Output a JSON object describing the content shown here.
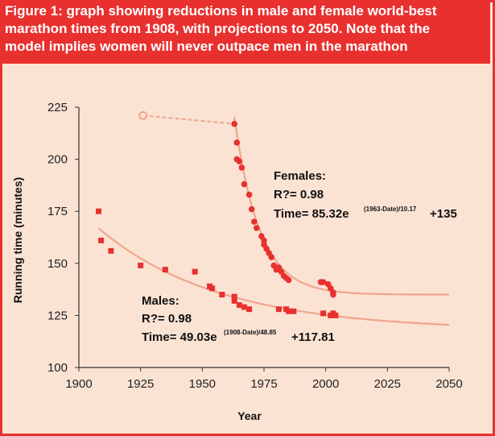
{
  "figure": {
    "title_lines": [
      "Figure 1: graph showing reductions in male and female world-best",
      "marathon times from 1908, with projections to 2050. Note that the",
      "model implies women will never outpace men in the marathon"
    ]
  },
  "colors": {
    "frame": "#e8312f",
    "panel": "#fbe3d4",
    "male_points": "#e8312f",
    "female_points": "#e8312f",
    "curve": "#f0a58c"
  },
  "annotations": {
    "females": {
      "heading": "Females:",
      "r2": "R?= 0.98",
      "time_prefix": "Time= 85.32e",
      "exponent": "(1963-Date)/10.17",
      "time_suffix": "+135"
    },
    "males": {
      "heading": "Males:",
      "r2": "R?= 0.98",
      "time_prefix": "Time= 49.03e",
      "exponent": "(1908-Date)/48.85",
      "time_suffix": "+117.81"
    }
  },
  "chart_data": {
    "type": "scatter",
    "title": "Figure 1: graph showing reductions in male and female world-best marathon times from 1908, with projections to 2050. Note that the model implies women will never outpace men in the marathon",
    "xlabel": "Year",
    "ylabel": "Running time (minutes)",
    "xlim": [
      1900,
      2050
    ],
    "ylim": [
      100,
      225
    ],
    "xticks": [
      1900,
      1925,
      1950,
      1975,
      2000,
      2025,
      2050
    ],
    "yticks": [
      100,
      125,
      150,
      175,
      200,
      225
    ],
    "series": [
      {
        "name": "Males",
        "marker": "square",
        "points": [
          [
            1908,
            175
          ],
          [
            1909,
            161
          ],
          [
            1913,
            156
          ],
          [
            1925,
            149
          ],
          [
            1935,
            147
          ],
          [
            1947,
            146
          ],
          [
            1953,
            139
          ],
          [
            1954,
            138
          ],
          [
            1958,
            135
          ],
          [
            1963,
            134
          ],
          [
            1963,
            132
          ],
          [
            1965,
            130
          ],
          [
            1967,
            129
          ],
          [
            1969,
            128
          ],
          [
            1981,
            128
          ],
          [
            1984,
            128
          ],
          [
            1985,
            127
          ],
          [
            1987,
            127
          ],
          [
            1999,
            126
          ],
          [
            2002,
            125
          ],
          [
            2003,
            126
          ],
          [
            2004,
            125
          ]
        ],
        "fit": {
          "a": 49.03,
          "t0": 1908,
          "tau": 48.85,
          "c": 117.81,
          "range": [
            1908,
            2050
          ]
        }
      },
      {
        "name": "Females",
        "marker": "circle",
        "hollow_point": [
          1926,
          221
        ],
        "dashed_segment": [
          [
            1926,
            221
          ],
          [
            1963,
            217
          ]
        ],
        "points": [
          [
            1963,
            217
          ],
          [
            1964,
            208
          ],
          [
            1964,
            200
          ],
          [
            1965,
            199
          ],
          [
            1966,
            196
          ],
          [
            1967,
            188
          ],
          [
            1969,
            183
          ],
          [
            1970,
            176
          ],
          [
            1971,
            170
          ],
          [
            1972,
            167
          ],
          [
            1974,
            163
          ],
          [
            1975,
            161
          ],
          [
            1975,
            159
          ],
          [
            1976,
            157
          ],
          [
            1977,
            155
          ],
          [
            1978,
            153
          ],
          [
            1979,
            149
          ],
          [
            1980,
            147
          ],
          [
            1981,
            148
          ],
          [
            1982,
            146
          ],
          [
            1983,
            144
          ],
          [
            1984,
            143
          ],
          [
            1985,
            142
          ],
          [
            1998,
            141
          ],
          [
            1999,
            141
          ],
          [
            2001,
            140
          ],
          [
            2002,
            138
          ],
          [
            2003,
            136
          ],
          [
            2003,
            135
          ]
        ],
        "fit": {
          "a": 85.32,
          "t0": 1963,
          "tau": 10.17,
          "c": 135,
          "range": [
            1963,
            2050
          ]
        }
      }
    ]
  }
}
